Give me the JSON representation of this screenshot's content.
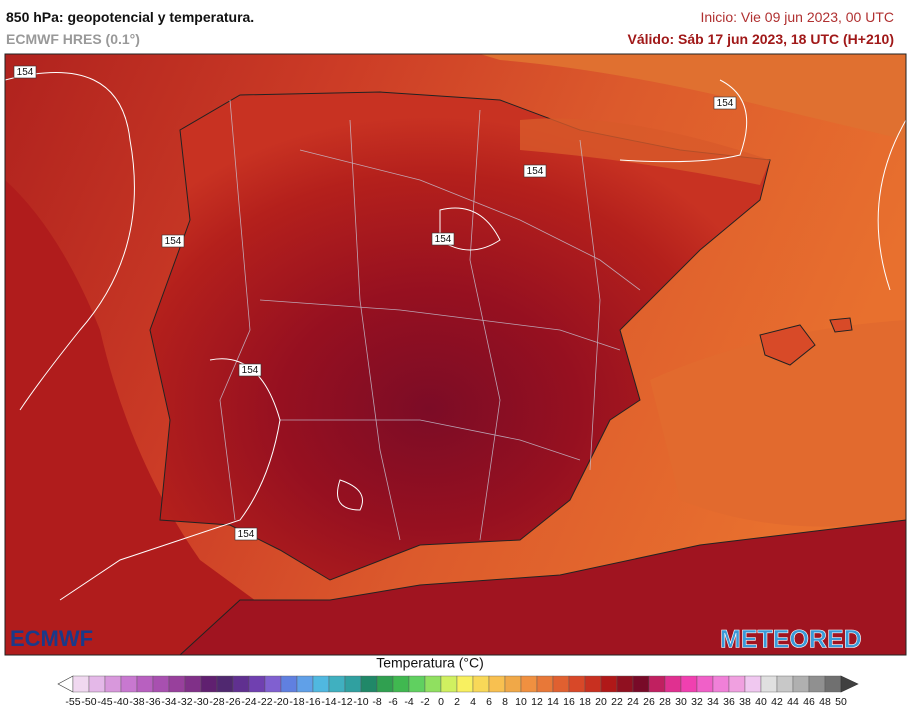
{
  "header": {
    "title": "850 hPa: geopotencial y temperatura.",
    "model": "ECMWF HRES (0.1°)",
    "init": "Inicio: Vie 09 jun 2023, 00 UTC",
    "valid": "Válido: Sáb 17 jun 2023, 18 UTC (H+210)"
  },
  "map": {
    "contour_labels": [
      "154",
      "154",
      "154",
      "154",
      "154",
      "154",
      "154"
    ],
    "logo_left": "ECMWF",
    "logo_right": "METEORED"
  },
  "colorbar": {
    "title": "Temperatura (°C)",
    "ticks": [
      -55,
      -50,
      -45,
      -40,
      -38,
      -36,
      -34,
      -32,
      -30,
      -28,
      -26,
      -24,
      -22,
      -20,
      -18,
      -16,
      -14,
      -12,
      -10,
      -8,
      -6,
      -4,
      -2,
      0,
      2,
      4,
      6,
      8,
      10,
      12,
      14,
      16,
      18,
      20,
      22,
      24,
      26,
      28,
      30,
      32,
      34,
      36,
      38,
      40,
      42,
      44,
      46,
      48,
      50
    ],
    "colors": [
      "#f0d8f0",
      "#e4b8e8",
      "#d898dc",
      "#c878d0",
      "#b860c0",
      "#a850b0",
      "#98409c",
      "#803088",
      "#602070",
      "#502870",
      "#603090",
      "#7040b0",
      "#8060d0",
      "#6080e0",
      "#60a0e8",
      "#50b8e0",
      "#40b0c0",
      "#30a0a0",
      "#208868",
      "#30a050",
      "#40b850",
      "#60d060",
      "#90e060",
      "#d0f060",
      "#f8f060",
      "#f8d858",
      "#f8c050",
      "#f0a848",
      "#f09040",
      "#e87838",
      "#e06030",
      "#d84828",
      "#c83020",
      "#b01818",
      "#901020",
      "#780a28",
      "#c02060",
      "#e03090",
      "#f040b0",
      "#f060c8",
      "#f080d8",
      "#f0a0e0",
      "#f0c8f0",
      "#e0e0e0",
      "#c8c8c8",
      "#b0b0b0",
      "#909090",
      "#707070"
    ]
  }
}
